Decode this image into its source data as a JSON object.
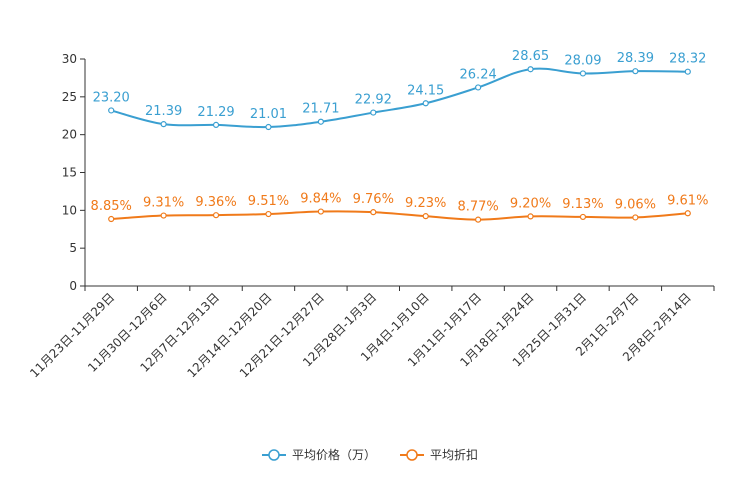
{
  "chart_data": {
    "type": "line",
    "categories": [
      "11月23日-11月29日",
      "11月30日-12月6日",
      "12月7日-12月13日",
      "12月14日-12月20日",
      "12月21日-12月27日",
      "12月28日-1月3日",
      "1月4日-1月10日",
      "1月11日-1月17日",
      "1月18日-1月24日",
      "1月25日-1月31日",
      "2月1日-2月7日",
      "2月8日-2月14日"
    ],
    "ylim": [
      0,
      30
    ],
    "yticks": [
      "0",
      "5",
      "10",
      "15",
      "20",
      "25",
      "30"
    ],
    "series": [
      {
        "name": "平均价格（万）",
        "color": "#3a9fd1",
        "values": [
          23.2,
          21.39,
          21.29,
          21.01,
          21.71,
          22.92,
          24.15,
          26.24,
          28.65,
          28.09,
          28.39,
          28.32
        ],
        "labels": [
          "23.20",
          "21.39",
          "21.29",
          "21.01",
          "21.71",
          "22.92",
          "24.15",
          "26.24",
          "28.65",
          "28.09",
          "28.39",
          "28.32"
        ]
      },
      {
        "name": "平均折扣",
        "color": "#f07a1a",
        "values": [
          8.85,
          9.31,
          9.36,
          9.51,
          9.84,
          9.76,
          9.23,
          8.77,
          9.2,
          9.13,
          9.06,
          9.61
        ],
        "labels": [
          "8.85%",
          "9.31%",
          "9.36%",
          "9.51%",
          "9.84%",
          "9.76%",
          "9.23%",
          "8.77%",
          "9.20%",
          "9.13%",
          "9.06%",
          "9.61%"
        ]
      }
    ],
    "legend": {
      "position": "bottom"
    }
  }
}
